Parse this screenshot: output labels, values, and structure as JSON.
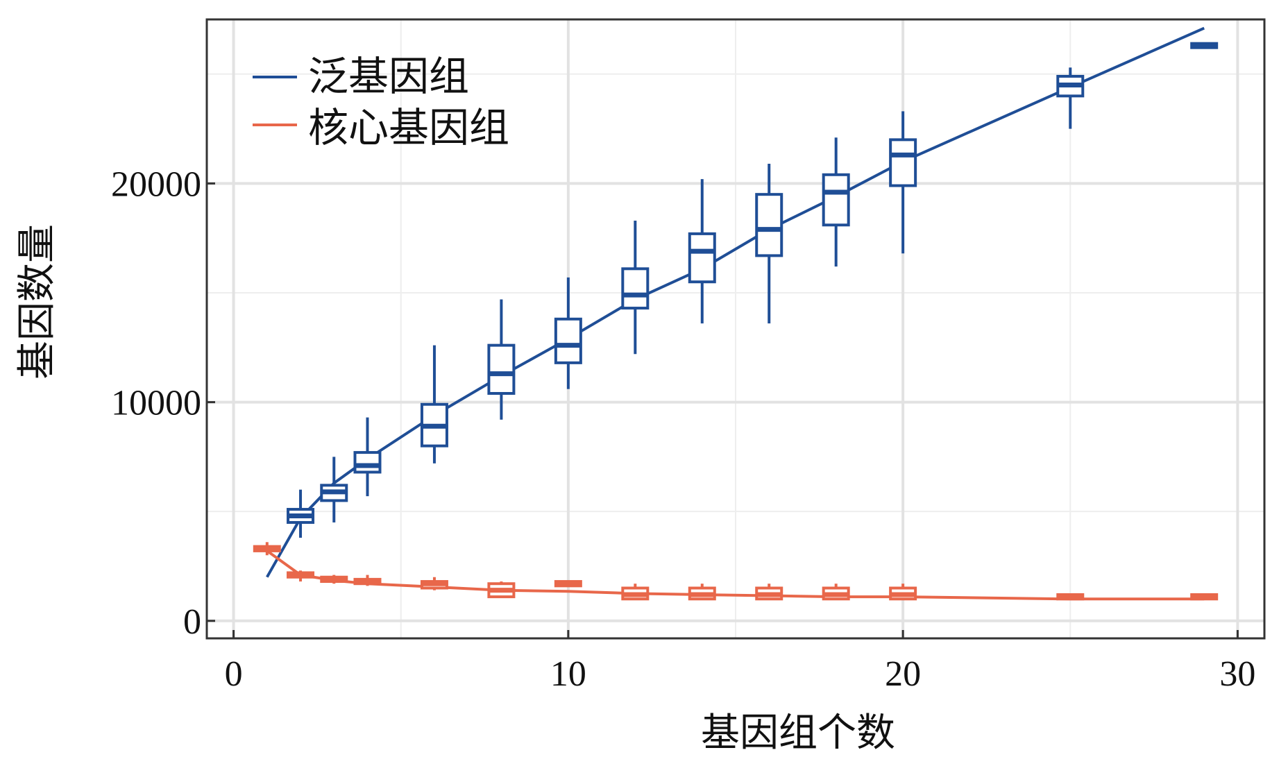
{
  "chart_data": {
    "type": "line",
    "xlabel": "基因组个数",
    "ylabel": "基因数量",
    "xlim": [
      -0.8,
      30.8
    ],
    "ylim": [
      -800,
      27500
    ],
    "x_ticks": [
      0,
      10,
      20,
      30
    ],
    "y_ticks": [
      0,
      10000,
      20000
    ],
    "x_tick_labels": [
      "0",
      "10",
      "20",
      "30"
    ],
    "y_tick_labels": [
      "0",
      "10000",
      "20000"
    ],
    "grid": true,
    "legend": {
      "placement": "top-left",
      "entries": [
        {
          "label": "泛基因组",
          "color": "#1f4e96"
        },
        {
          "label": "核心基因组",
          "color": "#e8674a"
        }
      ]
    },
    "series": [
      {
        "name": "泛基因组",
        "color": "#1f4e96",
        "curve": {
          "x": [
            1,
            2,
            3,
            4,
            6,
            8,
            10,
            12,
            14,
            16,
            18,
            20,
            25,
            29
          ],
          "y": [
            2000,
            4700,
            6300,
            7400,
            9400,
            11200,
            12900,
            14700,
            16100,
            17900,
            19400,
            21000,
            24400,
            27100
          ]
        },
        "boxes": [
          {
            "x": 2,
            "min": 3800,
            "q1": 4500,
            "median": 4800,
            "q3": 5100,
            "max": 6000
          },
          {
            "x": 3,
            "min": 4500,
            "q1": 5500,
            "median": 5900,
            "q3": 6200,
            "max": 7500
          },
          {
            "x": 4,
            "min": 5700,
            "q1": 6800,
            "median": 7100,
            "q3": 7700,
            "max": 9300
          },
          {
            "x": 6,
            "min": 7200,
            "q1": 8000,
            "median": 8900,
            "q3": 9900,
            "max": 12600
          },
          {
            "x": 8,
            "min": 9200,
            "q1": 10400,
            "median": 11300,
            "q3": 12600,
            "max": 14700
          },
          {
            "x": 10,
            "min": 10600,
            "q1": 11800,
            "median": 12600,
            "q3": 13800,
            "max": 15700
          },
          {
            "x": 12,
            "min": 12200,
            "q1": 14300,
            "median": 14900,
            "q3": 16100,
            "max": 18300
          },
          {
            "x": 14,
            "min": 13600,
            "q1": 15500,
            "median": 16900,
            "q3": 17700,
            "max": 20200
          },
          {
            "x": 16,
            "min": 13600,
            "q1": 16700,
            "median": 17900,
            "q3": 19500,
            "max": 20900
          },
          {
            "x": 18,
            "min": 16200,
            "q1": 18100,
            "median": 19600,
            "q3": 20400,
            "max": 22100
          },
          {
            "x": 20,
            "min": 16800,
            "q1": 19900,
            "median": 21300,
            "q3": 22000,
            "max": 23300
          },
          {
            "x": 25,
            "min": 22500,
            "q1": 24000,
            "median": 24500,
            "q3": 24900,
            "max": 25300
          },
          {
            "x": 29,
            "min": 26300,
            "q1": 26300,
            "median": 26300,
            "q3": 26400,
            "max": 26400
          }
        ]
      },
      {
        "name": "核心基因组",
        "color": "#e8674a",
        "curve": {
          "x": [
            1,
            2,
            3,
            4,
            6,
            8,
            10,
            12,
            14,
            16,
            18,
            20,
            25,
            29
          ],
          "y": [
            3200,
            2100,
            1850,
            1700,
            1550,
            1400,
            1350,
            1250,
            1200,
            1150,
            1100,
            1100,
            1000,
            1000
          ]
        },
        "boxes": [
          {
            "x": 1,
            "min": 3000,
            "q1": 3200,
            "median": 3300,
            "q3": 3400,
            "max": 3600
          },
          {
            "x": 2,
            "min": 1800,
            "q1": 2000,
            "median": 2100,
            "q3": 2200,
            "max": 2300
          },
          {
            "x": 3,
            "min": 1700,
            "q1": 1800,
            "median": 1900,
            "q3": 2000,
            "max": 2100
          },
          {
            "x": 4,
            "min": 1600,
            "q1": 1700,
            "median": 1800,
            "q3": 1900,
            "max": 2100
          },
          {
            "x": 6,
            "min": 1400,
            "q1": 1500,
            "median": 1700,
            "q3": 1800,
            "max": 2000
          },
          {
            "x": 8,
            "min": 1100,
            "q1": 1100,
            "median": 1400,
            "q3": 1700,
            "max": 1800
          },
          {
            "x": 10,
            "min": 1600,
            "q1": 1600,
            "median": 1700,
            "q3": 1800,
            "max": 1800
          },
          {
            "x": 12,
            "min": 1000,
            "q1": 1000,
            "median": 1200,
            "q3": 1500,
            "max": 1700
          },
          {
            "x": 14,
            "min": 1000,
            "q1": 1000,
            "median": 1200,
            "q3": 1500,
            "max": 1700
          },
          {
            "x": 16,
            "min": 1000,
            "q1": 1000,
            "median": 1200,
            "q3": 1500,
            "max": 1700
          },
          {
            "x": 18,
            "min": 1000,
            "q1": 1000,
            "median": 1200,
            "q3": 1500,
            "max": 1700
          },
          {
            "x": 20,
            "min": 1000,
            "q1": 1000,
            "median": 1200,
            "q3": 1500,
            "max": 1700
          },
          {
            "x": 25,
            "min": 1000,
            "q1": 1000,
            "median": 1100,
            "q3": 1200,
            "max": 1200
          },
          {
            "x": 29,
            "min": 1000,
            "q1": 1000,
            "median": 1100,
            "q3": 1200,
            "max": 1200
          }
        ]
      }
    ]
  }
}
